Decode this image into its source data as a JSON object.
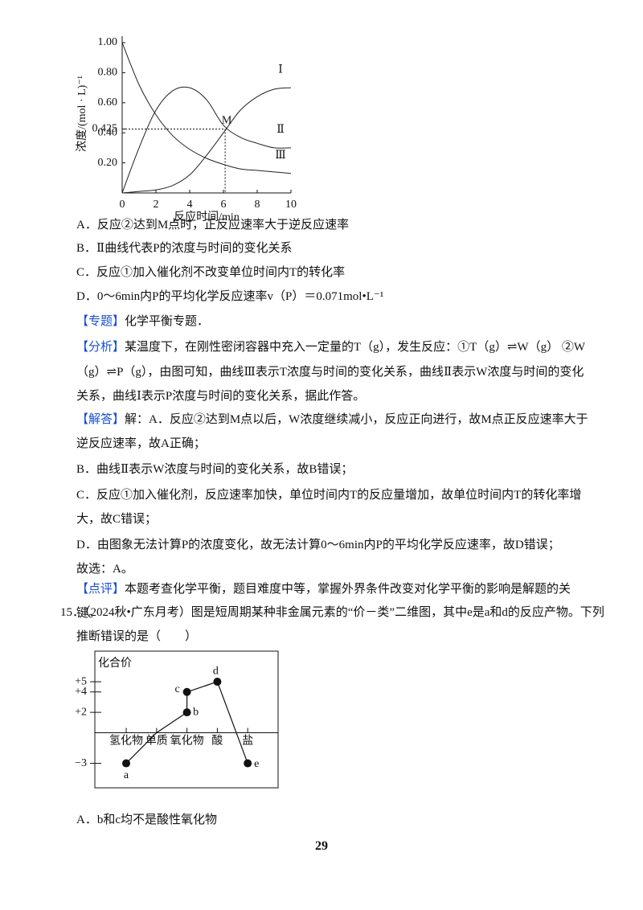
{
  "chart_data": [
    {
      "type": "line",
      "ylabel": "浓度/(mol · L)⁻¹",
      "xlabel": "反应时间/min",
      "x": [
        0,
        1,
        2,
        3,
        4,
        5,
        6,
        7,
        8,
        9,
        10
      ],
      "series": [
        {
          "name": "Ⅰ",
          "color": "#222222",
          "values": [
            0,
            0.01,
            0.02,
            0.05,
            0.12,
            0.25,
            0.4,
            0.55,
            0.64,
            0.69,
            0.7
          ]
        },
        {
          "name": "Ⅱ",
          "color": "#222222",
          "values": [
            0,
            0.3,
            0.55,
            0.68,
            0.7,
            0.62,
            0.45,
            0.37,
            0.33,
            0.3,
            0.3
          ]
        },
        {
          "name": "Ⅲ",
          "color": "#222222",
          "values": [
            1,
            0.72,
            0.52,
            0.38,
            0.29,
            0.23,
            0.19,
            0.16,
            0.15,
            0.14,
            0.13
          ]
        }
      ],
      "xlim": [
        0,
        10
      ],
      "xticks": [
        0,
        2,
        4,
        6,
        8,
        10
      ],
      "ylim": [
        0,
        1
      ],
      "yticks": [
        {
          "value": 0.2,
          "label": "0.20"
        },
        {
          "value": 0.4,
          "label": "0.40"
        },
        0.425,
        {
          "value": 0.6,
          "label": "0.60"
        },
        {
          "value": 0.8,
          "label": "0.80"
        },
        {
          "value": 1,
          "label": "1.00"
        }
      ],
      "annotations": [
        {
          "text": "M",
          "x": 6.1,
          "y": 0.425
        }
      ]
    },
    {
      "type": "valence",
      "ylabel": "化合价",
      "categories": [
        "氢化物",
        "单质",
        "氧化物",
        "酸",
        "盐"
      ],
      "points": [
        {
          "label": "a",
          "x": "氢化物",
          "y": -3
        },
        {
          "x": "单质",
          "y": 0
        },
        {
          "label": "b",
          "x": "氧化物",
          "y": 2
        },
        {
          "label": "c",
          "x": "氧化物",
          "y": 4
        },
        {
          "label": "d",
          "x": "酸",
          "y": 5
        },
        {
          "label": "e",
          "x": "盐",
          "y": -3
        }
      ],
      "ylim": [
        -5.4,
        8
      ],
      "yticks": [
        {
          "value": -3,
          "label": "−3"
        },
        {
          "value": 2,
          "label": "+2"
        },
        {
          "value": 4,
          "label": "+4"
        },
        {
          "value": 5,
          "label": "+5"
        }
      ]
    }
  ],
  "options1": [
    "A．反应②达到M点时，正反应速率大于逆反应速率",
    "B．Ⅱ曲线代表P的浓度与时间的变化关系",
    "C．反应①加入催化剂不改变单位时间内T的转化率",
    "D．0～6min内P的平均化学反应速率v（P）＝0.071mol•L⁻¹"
  ],
  "topic": {
    "tag": "【专题】",
    "text": "化学平衡专题．"
  },
  "analysis": {
    "tag": "【分析】",
    "text": "某温度下，在刚性密闭容器中充入一定量的T（g），发生反应：①T（g）⇌W（g） ②W（g）⇌P（g），由图可知，曲线Ⅲ表示T浓度与时间的变化关系，曲线Ⅱ表示W浓度与时间的变化关系，曲线Ⅰ表示P浓度与时间的变化关系，据此作答。"
  },
  "answer": {
    "tag": "【解答】",
    "lines": [
      "解：A．反应②达到M点以后，W浓度继续减小，反应正向进行，故M点正反应速率大于逆反应速率，故A正确；",
      "B．曲线Ⅱ表示W浓度与时间的变化关系，故B错误；",
      "C．反应①加入催化剂，反应速率加快，单位时间内T的反应量增加，故单位时间内T的转化率增大，故C错误；",
      "D．由图象无法计算P的浓度变化，故无法计算0～6min内P的平均化学反应速率，故D错误；",
      "故选：A。"
    ]
  },
  "comment": {
    "tag": "【点评】",
    "text": "本题考查化学平衡，题目难度中等，掌握外界条件改变对化学平衡的影响是解题的关键。"
  },
  "question15": {
    "number": "15．",
    "text": "（2024秋•广东月考）图是短周期某种非金属元素的“价－类”二维图，其中e是a和d的反应产物。下列推断错误的是（　　）"
  },
  "options2": [
    "A．b和c均不是酸性氧化物"
  ],
  "page_number": "29"
}
